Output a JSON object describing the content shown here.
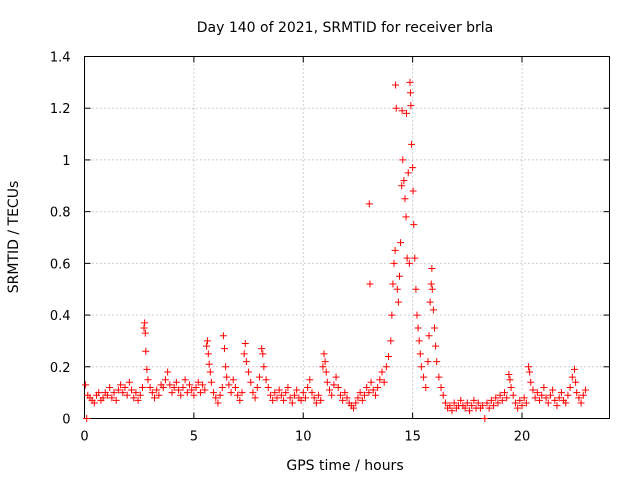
{
  "chart_data": {
    "type": "scatter",
    "title": "Day 140 of 2021, SRMTID for receiver brla",
    "xlabel": "GPS time / hours",
    "ylabel": "SRMTID / TECUs",
    "xlim": [
      0,
      24
    ],
    "ylim": [
      0,
      1.4
    ],
    "xticks": [
      0,
      5,
      10,
      15,
      20
    ],
    "xtick_labels": [
      "0",
      "5",
      "10",
      "15",
      "20"
    ],
    "yticks": [
      0,
      0.2,
      0.4,
      0.6,
      0.8,
      1.0,
      1.2,
      1.4
    ],
    "ytick_labels": [
      "0",
      "0.2",
      "0.4",
      "0.6",
      "0.8",
      "1",
      "1.2",
      "1.4"
    ],
    "grid": true,
    "marker": "+",
    "color": "#ff0000",
    "series": [
      {
        "name": "SRMTID",
        "points": [
          [
            0.05,
            0.13
          ],
          [
            0.1,
            0.0
          ],
          [
            0.15,
            0.09
          ],
          [
            0.25,
            0.08
          ],
          [
            0.35,
            0.07
          ],
          [
            0.45,
            0.06
          ],
          [
            0.55,
            0.09
          ],
          [
            0.65,
            0.1
          ],
          [
            0.75,
            0.07
          ],
          [
            0.85,
            0.08
          ],
          [
            0.95,
            0.1
          ],
          [
            1.05,
            0.09
          ],
          [
            1.15,
            0.12
          ],
          [
            1.25,
            0.08
          ],
          [
            1.35,
            0.1
          ],
          [
            1.45,
            0.07
          ],
          [
            1.55,
            0.11
          ],
          [
            1.65,
            0.13
          ],
          [
            1.75,
            0.1
          ],
          [
            1.85,
            0.12
          ],
          [
            1.95,
            0.09
          ],
          [
            2.05,
            0.14
          ],
          [
            2.15,
            0.11
          ],
          [
            2.25,
            0.08
          ],
          [
            2.35,
            0.1
          ],
          [
            2.45,
            0.07
          ],
          [
            2.55,
            0.09
          ],
          [
            2.65,
            0.12
          ],
          [
            2.72,
            0.35
          ],
          [
            2.75,
            0.37
          ],
          [
            2.78,
            0.33
          ],
          [
            2.8,
            0.26
          ],
          [
            2.85,
            0.19
          ],
          [
            2.9,
            0.15
          ],
          [
            3.0,
            0.12
          ],
          [
            3.1,
            0.1
          ],
          [
            3.2,
            0.08
          ],
          [
            3.3,
            0.11
          ],
          [
            3.4,
            0.09
          ],
          [
            3.5,
            0.13
          ],
          [
            3.6,
            0.12
          ],
          [
            3.7,
            0.15
          ],
          [
            3.8,
            0.18
          ],
          [
            3.9,
            0.13
          ],
          [
            4.0,
            0.1
          ],
          [
            4.1,
            0.12
          ],
          [
            4.2,
            0.14
          ],
          [
            4.3,
            0.11
          ],
          [
            4.4,
            0.09
          ],
          [
            4.5,
            0.12
          ],
          [
            4.6,
            0.15
          ],
          [
            4.7,
            0.1
          ],
          [
            4.8,
            0.13
          ],
          [
            4.9,
            0.11
          ],
          [
            5.0,
            0.09
          ],
          [
            5.1,
            0.12
          ],
          [
            5.2,
            0.14
          ],
          [
            5.3,
            0.1
          ],
          [
            5.4,
            0.13
          ],
          [
            5.5,
            0.11
          ],
          [
            5.58,
            0.28
          ],
          [
            5.62,
            0.3
          ],
          [
            5.66,
            0.25
          ],
          [
            5.7,
            0.21
          ],
          [
            5.75,
            0.18
          ],
          [
            5.8,
            0.14
          ],
          [
            5.9,
            0.1
          ],
          [
            6.0,
            0.08
          ],
          [
            6.1,
            0.06
          ],
          [
            6.2,
            0.09
          ],
          [
            6.3,
            0.12
          ],
          [
            6.35,
            0.32
          ],
          [
            6.4,
            0.27
          ],
          [
            6.45,
            0.2
          ],
          [
            6.5,
            0.16
          ],
          [
            6.6,
            0.13
          ],
          [
            6.7,
            0.1
          ],
          [
            6.8,
            0.15
          ],
          [
            6.9,
            0.12
          ],
          [
            7.0,
            0.09
          ],
          [
            7.1,
            0.07
          ],
          [
            7.2,
            0.1
          ],
          [
            7.3,
            0.25
          ],
          [
            7.35,
            0.29
          ],
          [
            7.4,
            0.22
          ],
          [
            7.5,
            0.18
          ],
          [
            7.6,
            0.14
          ],
          [
            7.7,
            0.1
          ],
          [
            7.8,
            0.08
          ],
          [
            7.9,
            0.12
          ],
          [
            8.0,
            0.16
          ],
          [
            8.1,
            0.27
          ],
          [
            8.15,
            0.25
          ],
          [
            8.2,
            0.2
          ],
          [
            8.3,
            0.15
          ],
          [
            8.4,
            0.12
          ],
          [
            8.5,
            0.09
          ],
          [
            8.6,
            0.07
          ],
          [
            8.7,
            0.1
          ],
          [
            8.8,
            0.08
          ],
          [
            8.9,
            0.11
          ],
          [
            9.0,
            0.09
          ],
          [
            9.1,
            0.07
          ],
          [
            9.2,
            0.1
          ],
          [
            9.3,
            0.12
          ],
          [
            9.4,
            0.08
          ],
          [
            9.5,
            0.06
          ],
          [
            9.6,
            0.09
          ],
          [
            9.7,
            0.11
          ],
          [
            9.8,
            0.08
          ],
          [
            9.9,
            0.07
          ],
          [
            10.0,
            0.1
          ],
          [
            10.1,
            0.08
          ],
          [
            10.2,
            0.12
          ],
          [
            10.3,
            0.15
          ],
          [
            10.4,
            0.1
          ],
          [
            10.5,
            0.08
          ],
          [
            10.6,
            0.06
          ],
          [
            10.7,
            0.09
          ],
          [
            10.8,
            0.07
          ],
          [
            10.9,
            0.2
          ],
          [
            10.95,
            0.25
          ],
          [
            11.0,
            0.22
          ],
          [
            11.05,
            0.18
          ],
          [
            11.1,
            0.14
          ],
          [
            11.2,
            0.11
          ],
          [
            11.3,
            0.09
          ],
          [
            11.4,
            0.13
          ],
          [
            11.5,
            0.16
          ],
          [
            11.6,
            0.12
          ],
          [
            11.7,
            0.09
          ],
          [
            11.8,
            0.07
          ],
          [
            11.9,
            0.1
          ],
          [
            12.0,
            0.08
          ],
          [
            12.1,
            0.06
          ],
          [
            12.2,
            0.05
          ],
          [
            12.3,
            0.04
          ],
          [
            12.4,
            0.06
          ],
          [
            12.5,
            0.08
          ],
          [
            12.6,
            0.1
          ],
          [
            12.7,
            0.07
          ],
          [
            12.8,
            0.09
          ],
          [
            12.9,
            0.12
          ],
          [
            13.0,
            0.1
          ],
          [
            13.02,
            0.83
          ],
          [
            13.05,
            0.52
          ],
          [
            13.1,
            0.14
          ],
          [
            13.2,
            0.11
          ],
          [
            13.3,
            0.09
          ],
          [
            13.4,
            0.12
          ],
          [
            13.5,
            0.15
          ],
          [
            13.6,
            0.18
          ],
          [
            13.7,
            0.14
          ],
          [
            13.8,
            0.2
          ],
          [
            13.9,
            0.24
          ],
          [
            14.0,
            0.3
          ],
          [
            14.05,
            0.4
          ],
          [
            14.1,
            0.52
          ],
          [
            14.15,
            0.6
          ],
          [
            14.2,
            0.65
          ],
          [
            14.22,
            1.29
          ],
          [
            14.25,
            1.2
          ],
          [
            14.3,
            0.5
          ],
          [
            14.35,
            0.45
          ],
          [
            14.4,
            0.55
          ],
          [
            14.45,
            0.68
          ],
          [
            14.5,
            0.9
          ],
          [
            14.52,
            1.19
          ],
          [
            14.55,
            1.0
          ],
          [
            14.6,
            0.92
          ],
          [
            14.65,
            0.85
          ],
          [
            14.7,
            0.78
          ],
          [
            14.72,
            1.18
          ],
          [
            14.75,
            0.62
          ],
          [
            14.8,
            0.95
          ],
          [
            14.85,
            0.6
          ],
          [
            14.88,
            1.3
          ],
          [
            14.9,
            1.26
          ],
          [
            14.92,
            1.21
          ],
          [
            14.95,
            1.06
          ],
          [
            15.0,
            0.97
          ],
          [
            15.02,
            0.88
          ],
          [
            15.05,
            0.75
          ],
          [
            15.1,
            0.62
          ],
          [
            15.15,
            0.5
          ],
          [
            15.2,
            0.4
          ],
          [
            15.25,
            0.35
          ],
          [
            15.3,
            0.3
          ],
          [
            15.35,
            0.25
          ],
          [
            15.4,
            0.2
          ],
          [
            15.5,
            0.16
          ],
          [
            15.6,
            0.12
          ],
          [
            15.7,
            0.22
          ],
          [
            15.75,
            0.32
          ],
          [
            15.8,
            0.45
          ],
          [
            15.85,
            0.52
          ],
          [
            15.88,
            0.58
          ],
          [
            15.9,
            0.5
          ],
          [
            15.95,
            0.42
          ],
          [
            16.0,
            0.35
          ],
          [
            16.05,
            0.28
          ],
          [
            16.1,
            0.22
          ],
          [
            16.2,
            0.16
          ],
          [
            16.3,
            0.12
          ],
          [
            16.4,
            0.09
          ],
          [
            16.5,
            0.06
          ],
          [
            16.6,
            0.04
          ],
          [
            16.7,
            0.05
          ],
          [
            16.8,
            0.03
          ],
          [
            16.9,
            0.06
          ],
          [
            17.0,
            0.04
          ],
          [
            17.1,
            0.05
          ],
          [
            17.2,
            0.07
          ],
          [
            17.3,
            0.05
          ],
          [
            17.4,
            0.04
          ],
          [
            17.5,
            0.06
          ],
          [
            17.6,
            0.03
          ],
          [
            17.7,
            0.05
          ],
          [
            17.8,
            0.07
          ],
          [
            17.9,
            0.04
          ],
          [
            18.0,
            0.06
          ],
          [
            18.1,
            0.04
          ],
          [
            18.2,
            0.05
          ],
          [
            18.3,
            0.0
          ],
          [
            18.4,
            0.06
          ],
          [
            18.5,
            0.04
          ],
          [
            18.6,
            0.07
          ],
          [
            18.7,
            0.05
          ],
          [
            18.8,
            0.08
          ],
          [
            18.9,
            0.06
          ],
          [
            19.0,
            0.09
          ],
          [
            19.1,
            0.07
          ],
          [
            19.2,
            0.1
          ],
          [
            19.3,
            0.08
          ],
          [
            19.4,
            0.17
          ],
          [
            19.45,
            0.15
          ],
          [
            19.5,
            0.12
          ],
          [
            19.6,
            0.09
          ],
          [
            19.7,
            0.06
          ],
          [
            19.8,
            0.04
          ],
          [
            19.9,
            0.07
          ],
          [
            20.0,
            0.05
          ],
          [
            20.1,
            0.08
          ],
          [
            20.2,
            0.06
          ],
          [
            20.3,
            0.2
          ],
          [
            20.35,
            0.18
          ],
          [
            20.4,
            0.14
          ],
          [
            20.5,
            0.11
          ],
          [
            20.6,
            0.08
          ],
          [
            20.7,
            0.1
          ],
          [
            20.8,
            0.07
          ],
          [
            20.9,
            0.09
          ],
          [
            21.0,
            0.12
          ],
          [
            21.1,
            0.08
          ],
          [
            21.2,
            0.06
          ],
          [
            21.3,
            0.09
          ],
          [
            21.4,
            0.11
          ],
          [
            21.5,
            0.07
          ],
          [
            21.6,
            0.05
          ],
          [
            21.7,
            0.08
          ],
          [
            21.8,
            0.1
          ],
          [
            21.9,
            0.07
          ],
          [
            22.0,
            0.06
          ],
          [
            22.1,
            0.09
          ],
          [
            22.2,
            0.12
          ],
          [
            22.3,
            0.16
          ],
          [
            22.4,
            0.19
          ],
          [
            22.45,
            0.14
          ],
          [
            22.5,
            0.1
          ],
          [
            22.6,
            0.08
          ],
          [
            22.7,
            0.06
          ],
          [
            22.8,
            0.09
          ],
          [
            22.9,
            0.11
          ]
        ]
      }
    ]
  }
}
